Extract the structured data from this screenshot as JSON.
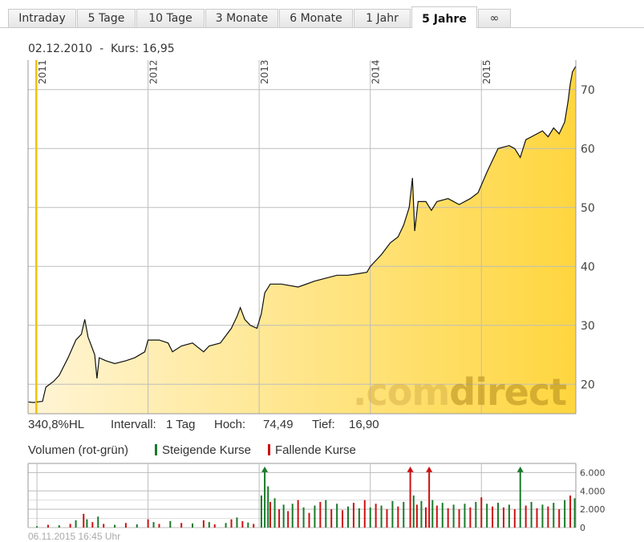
{
  "tabs": [
    {
      "label": "Intraday",
      "active": false
    },
    {
      "label": "5 Tage",
      "active": false
    },
    {
      "label": "10 Tage",
      "active": false
    },
    {
      "label": "3 Monate",
      "active": false
    },
    {
      "label": "6 Monate",
      "active": false
    },
    {
      "label": "1 Jahr",
      "active": false
    },
    {
      "label": "5 Jahre",
      "active": true
    },
    {
      "label": "∞",
      "active": false
    }
  ],
  "caption": {
    "date": "02.12.2010",
    "separator": "-",
    "kurs_label": "Kurs:",
    "kurs_value": "16,95"
  },
  "watermark": {
    "prefix": ".com",
    "suffix": "direct"
  },
  "stats": {
    "change": "340,8%HL",
    "interval_label": "Intervall:",
    "interval_value": "1 Tag",
    "high_label": "Hoch:",
    "high_value": "74,49",
    "low_label": "Tief:",
    "low_value": "16,90"
  },
  "volume_header": {
    "title": "Volumen (rot-grün)",
    "rising_label": "Steigende Kurse",
    "falling_label": "Fallende Kurse"
  },
  "footer": {
    "timestamp": "06.11.2015 16:45 Uhr"
  },
  "colors": {
    "area_light": "#fff5d6",
    "area_dark": "#ffd63f",
    "line": "#111111",
    "cursor": "#f5c400",
    "rising": "#1a7a2a",
    "falling": "#cc1111",
    "grid": "#bdbdbd"
  },
  "chart_data": [
    {
      "type": "area",
      "x_ticks": [
        "2011",
        "2012",
        "2013",
        "2014",
        "2015"
      ],
      "y_ticks": [
        "20",
        "30",
        "40",
        "50",
        "60",
        "70"
      ],
      "ylim": [
        15,
        75
      ],
      "x_domain": [
        2010.92,
        2015.85
      ],
      "x_tick_values": [
        2011,
        2012,
        2013,
        2014,
        2015
      ],
      "y_tick_values": [
        20,
        30,
        40,
        50,
        60,
        70
      ],
      "points": [
        [
          2010.92,
          17.0
        ],
        [
          2010.97,
          16.9
        ],
        [
          2011.0,
          17.0
        ],
        [
          2011.05,
          17.1
        ],
        [
          2011.08,
          19.5
        ],
        [
          2011.15,
          20.5
        ],
        [
          2011.2,
          21.5
        ],
        [
          2011.28,
          24.5
        ],
        [
          2011.35,
          27.5
        ],
        [
          2011.4,
          28.5
        ],
        [
          2011.43,
          31.0
        ],
        [
          2011.46,
          28.0
        ],
        [
          2011.49,
          26.5
        ],
        [
          2011.52,
          25.0
        ],
        [
          2011.54,
          21.0
        ],
        [
          2011.56,
          24.5
        ],
        [
          2011.62,
          24.0
        ],
        [
          2011.7,
          23.5
        ],
        [
          2011.8,
          24.0
        ],
        [
          2011.88,
          24.5
        ],
        [
          2011.97,
          25.5
        ],
        [
          2012.0,
          27.5
        ],
        [
          2012.1,
          27.5
        ],
        [
          2012.18,
          27.0
        ],
        [
          2012.22,
          25.5
        ],
        [
          2012.3,
          26.5
        ],
        [
          2012.4,
          27.0
        ],
        [
          2012.5,
          25.5
        ],
        [
          2012.55,
          26.5
        ],
        [
          2012.65,
          27.0
        ],
        [
          2012.75,
          29.5
        ],
        [
          2012.8,
          31.5
        ],
        [
          2012.83,
          33.0
        ],
        [
          2012.87,
          31.0
        ],
        [
          2012.92,
          30.0
        ],
        [
          2012.98,
          29.5
        ],
        [
          2013.02,
          32.0
        ],
        [
          2013.05,
          35.5
        ],
        [
          2013.1,
          37.0
        ],
        [
          2013.2,
          37.0
        ],
        [
          2013.35,
          36.5
        ],
        [
          2013.5,
          37.5
        ],
        [
          2013.6,
          38.0
        ],
        [
          2013.7,
          38.5
        ],
        [
          2013.8,
          38.5
        ],
        [
          2013.9,
          38.8
        ],
        [
          2013.97,
          39.0
        ],
        [
          2014.0,
          40.0
        ],
        [
          2014.1,
          42.0
        ],
        [
          2014.18,
          44.0
        ],
        [
          2014.25,
          45.0
        ],
        [
          2014.3,
          47.0
        ],
        [
          2014.35,
          50.0
        ],
        [
          2014.38,
          55.0
        ],
        [
          2014.4,
          46.0
        ],
        [
          2014.43,
          51.0
        ],
        [
          2014.5,
          51.0
        ],
        [
          2014.55,
          49.5
        ],
        [
          2014.6,
          51.0
        ],
        [
          2014.7,
          51.5
        ],
        [
          2014.8,
          50.5
        ],
        [
          2014.9,
          51.5
        ],
        [
          2014.97,
          52.5
        ],
        [
          2015.05,
          56.0
        ],
        [
          2015.1,
          58.0
        ],
        [
          2015.15,
          60.0
        ],
        [
          2015.25,
          60.5
        ],
        [
          2015.3,
          60.0
        ],
        [
          2015.35,
          58.5
        ],
        [
          2015.4,
          61.5
        ],
        [
          2015.45,
          62.0
        ],
        [
          2015.55,
          63.0
        ],
        [
          2015.6,
          62.0
        ],
        [
          2015.65,
          63.5
        ],
        [
          2015.7,
          62.5
        ],
        [
          2015.75,
          64.5
        ],
        [
          2015.78,
          68.0
        ],
        [
          2015.8,
          71.0
        ],
        [
          2015.82,
          73.0
        ],
        [
          2015.85,
          74.0
        ]
      ],
      "cursor_x": 2010.92
    },
    {
      "type": "bar",
      "y_ticks": [
        "6.000",
        "4.000",
        "2.000",
        "0"
      ],
      "y_tick_values": [
        6000,
        4000,
        2000,
        0
      ],
      "ylim": [
        0,
        7000
      ],
      "x_domain": [
        2010.92,
        2015.85
      ],
      "bars": [
        [
          2011.0,
          150,
          1
        ],
        [
          2011.1,
          300,
          0
        ],
        [
          2011.2,
          250,
          1
        ],
        [
          2011.3,
          400,
          0
        ],
        [
          2011.35,
          800,
          1
        ],
        [
          2011.42,
          1500,
          0
        ],
        [
          2011.45,
          900,
          1
        ],
        [
          2011.5,
          600,
          0
        ],
        [
          2011.55,
          1200,
          1
        ],
        [
          2011.6,
          400,
          0
        ],
        [
          2011.7,
          300,
          1
        ],
        [
          2011.8,
          500,
          0
        ],
        [
          2011.9,
          350,
          1
        ],
        [
          2012.0,
          900,
          0
        ],
        [
          2012.05,
          600,
          1
        ],
        [
          2012.1,
          400,
          0
        ],
        [
          2012.2,
          700,
          1
        ],
        [
          2012.3,
          500,
          0
        ],
        [
          2012.4,
          450,
          1
        ],
        [
          2012.5,
          800,
          0
        ],
        [
          2012.55,
          600,
          1
        ],
        [
          2012.6,
          350,
          0
        ],
        [
          2012.7,
          500,
          1
        ],
        [
          2012.75,
          900,
          0
        ],
        [
          2012.8,
          1100,
          1
        ],
        [
          2012.85,
          700,
          0
        ],
        [
          2012.9,
          550,
          1
        ],
        [
          2012.95,
          400,
          0
        ],
        [
          2013.02,
          3500,
          1
        ],
        [
          2013.05,
          6400,
          1
        ],
        [
          2013.08,
          4500,
          1
        ],
        [
          2013.1,
          2800,
          0
        ],
        [
          2013.14,
          3200,
          1
        ],
        [
          2013.18,
          2000,
          0
        ],
        [
          2013.22,
          2500,
          1
        ],
        [
          2013.26,
          1800,
          0
        ],
        [
          2013.3,
          2600,
          1
        ],
        [
          2013.35,
          3000,
          0
        ],
        [
          2013.4,
          2200,
          1
        ],
        [
          2013.45,
          1600,
          0
        ],
        [
          2013.5,
          2400,
          1
        ],
        [
          2013.55,
          2800,
          0
        ],
        [
          2013.6,
          3000,
          1
        ],
        [
          2013.65,
          2000,
          0
        ],
        [
          2013.7,
          2600,
          1
        ],
        [
          2013.75,
          1900,
          0
        ],
        [
          2013.8,
          2300,
          1
        ],
        [
          2013.85,
          2700,
          0
        ],
        [
          2013.9,
          2100,
          1
        ],
        [
          2013.95,
          3000,
          0
        ],
        [
          2014.0,
          2200,
          1
        ],
        [
          2014.05,
          2600,
          0
        ],
        [
          2014.1,
          2400,
          1
        ],
        [
          2014.15,
          2000,
          0
        ],
        [
          2014.2,
          2900,
          1
        ],
        [
          2014.25,
          2300,
          0
        ],
        [
          2014.3,
          2800,
          1
        ],
        [
          2014.36,
          6400,
          0
        ],
        [
          2014.39,
          3500,
          1
        ],
        [
          2014.42,
          2500,
          0
        ],
        [
          2014.46,
          2900,
          1
        ],
        [
          2014.5,
          2200,
          0
        ],
        [
          2014.53,
          6400,
          0
        ],
        [
          2014.56,
          3000,
          1
        ],
        [
          2014.6,
          2400,
          0
        ],
        [
          2014.65,
          2700,
          1
        ],
        [
          2014.7,
          2100,
          0
        ],
        [
          2014.75,
          2500,
          1
        ],
        [
          2014.8,
          2000,
          0
        ],
        [
          2014.85,
          2600,
          1
        ],
        [
          2014.9,
          2200,
          0
        ],
        [
          2014.95,
          2800,
          1
        ],
        [
          2015.0,
          3300,
          0
        ],
        [
          2015.05,
          2600,
          1
        ],
        [
          2015.1,
          2300,
          0
        ],
        [
          2015.15,
          2700,
          1
        ],
        [
          2015.2,
          2200,
          0
        ],
        [
          2015.25,
          2500,
          1
        ],
        [
          2015.3,
          2000,
          0
        ],
        [
          2015.35,
          6400,
          1
        ],
        [
          2015.4,
          2400,
          0
        ],
        [
          2015.45,
          2800,
          1
        ],
        [
          2015.5,
          2100,
          0
        ],
        [
          2015.55,
          2500,
          1
        ],
        [
          2015.6,
          2300,
          0
        ],
        [
          2015.65,
          2700,
          1
        ],
        [
          2015.7,
          2000,
          0
        ],
        [
          2015.75,
          3000,
          1
        ],
        [
          2015.8,
          3500,
          0
        ],
        [
          2015.84,
          3200,
          1
        ]
      ]
    }
  ]
}
